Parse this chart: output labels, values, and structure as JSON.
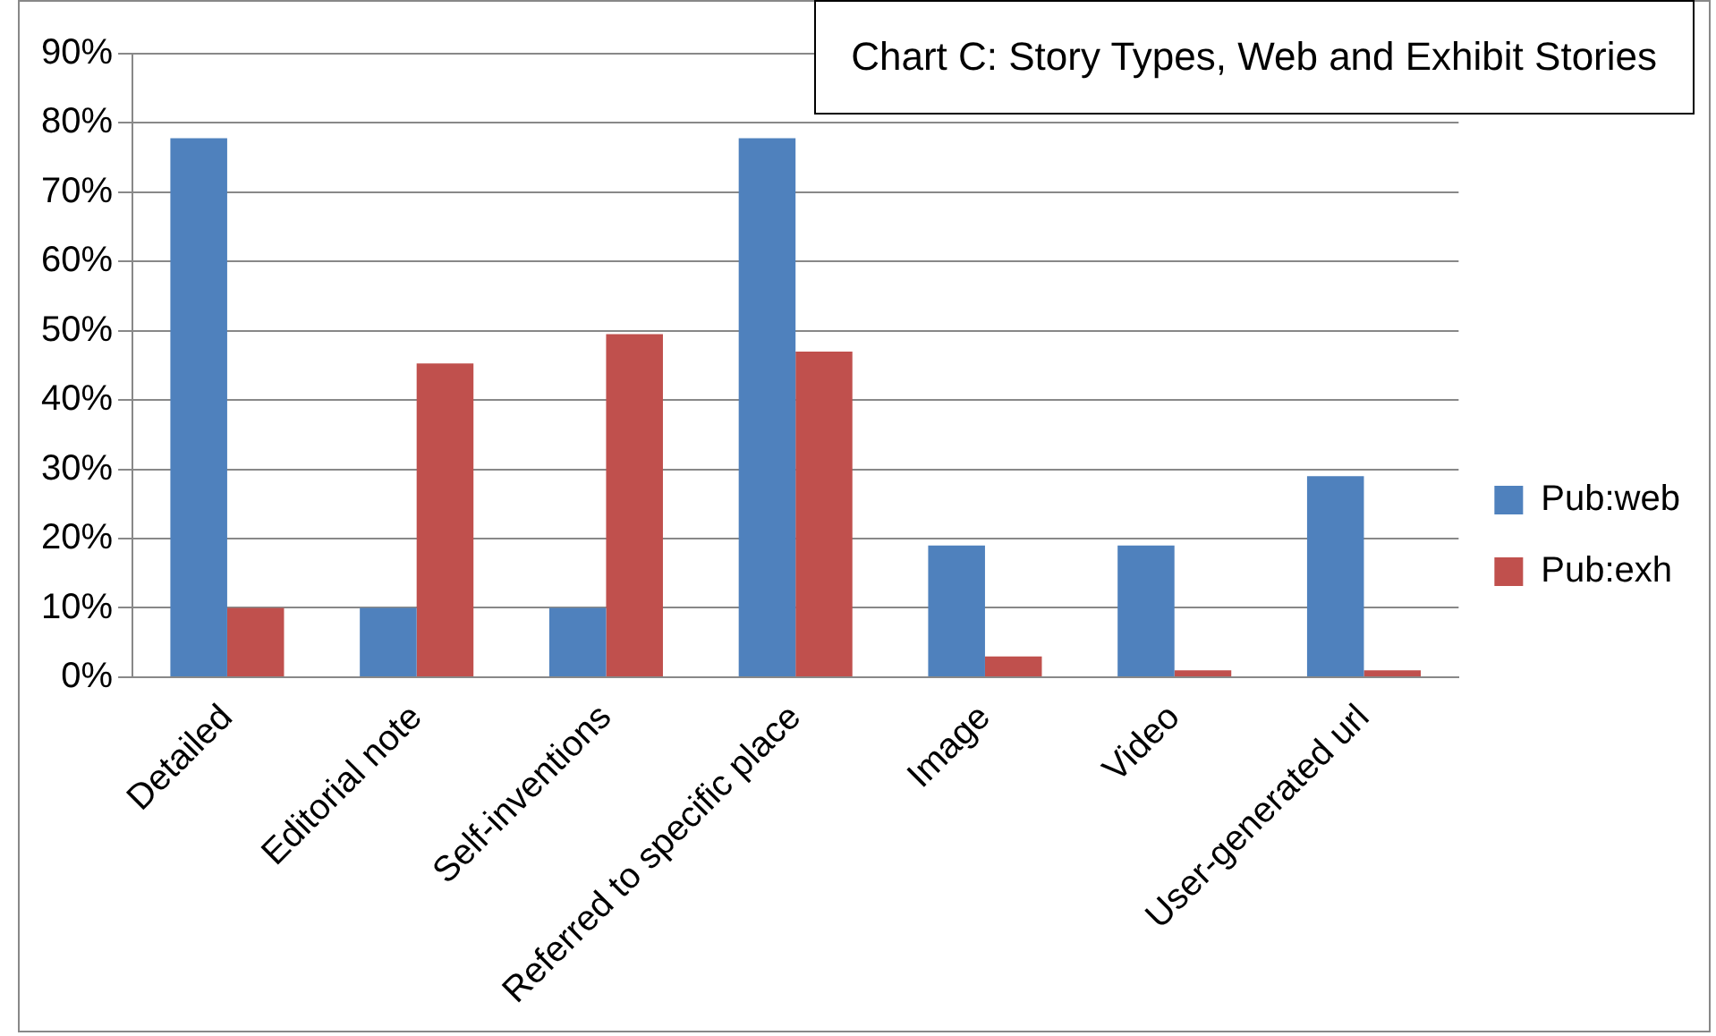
{
  "chart_data": {
    "type": "bar",
    "title": "Chart C: Story Types, Web and Exhibit Stories",
    "categories": [
      "Detailed",
      "Editorial note",
      "Self-inventions",
      "Referred to specific place",
      "Image",
      "Video",
      "User-generated url"
    ],
    "series": [
      {
        "name": "Pub:web",
        "color": "#4f81bd",
        "values": [
          77.8,
          10,
          10,
          77.8,
          19,
          19,
          29
        ]
      },
      {
        "name": "Pub:exh",
        "color": "#c0504d",
        "values": [
          10,
          45.3,
          49.5,
          47,
          3,
          1,
          1
        ]
      }
    ],
    "ylim": [
      0,
      90
    ],
    "yticks": [
      {
        "value": 0,
        "label": "0%"
      },
      {
        "value": 10,
        "label": "10%"
      },
      {
        "value": 20,
        "label": "20%"
      },
      {
        "value": 30,
        "label": "30%"
      },
      {
        "value": 40,
        "label": "40%"
      },
      {
        "value": 50,
        "label": "50%"
      },
      {
        "value": 60,
        "label": "60%"
      },
      {
        "value": 70,
        "label": "70%"
      },
      {
        "value": 80,
        "label": "80%"
      },
      {
        "value": 90,
        "label": "90%"
      }
    ],
    "grid": "y",
    "legend": "right"
  }
}
